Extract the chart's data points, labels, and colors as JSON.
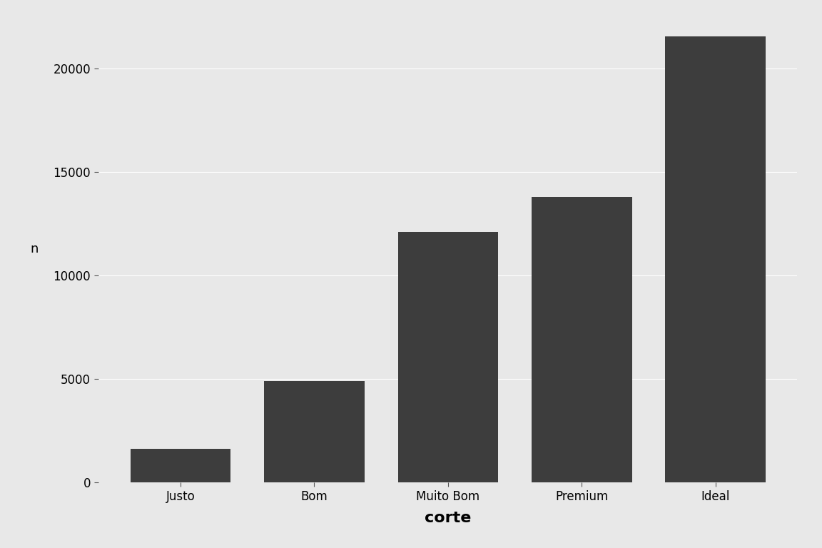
{
  "categories": [
    "Justo",
    "Bom",
    "Muito Bom",
    "Premium",
    "Ideal"
  ],
  "values": [
    1610,
    4906,
    12082,
    13791,
    21551
  ],
  "bar_color": "#3d3d3d",
  "background_color": "#e8e8e8",
  "panel_background": "#e8e8e8",
  "outer_background": "#e8e8e8",
  "xlabel": "corte",
  "ylabel": "n",
  "xlabel_fontsize": 16,
  "ylabel_fontsize": 13,
  "tick_fontsize": 12,
  "ylim": [
    0,
    22500
  ],
  "yticks": [
    0,
    5000,
    10000,
    15000,
    20000
  ],
  "ytick_labels": [
    "0",
    "5000",
    "10000",
    "15000",
    "20000"
  ],
  "grid_color": "#ffffff",
  "grid_linewidth": 0.8,
  "bar_width": 0.75,
  "tick_color": "#555555"
}
